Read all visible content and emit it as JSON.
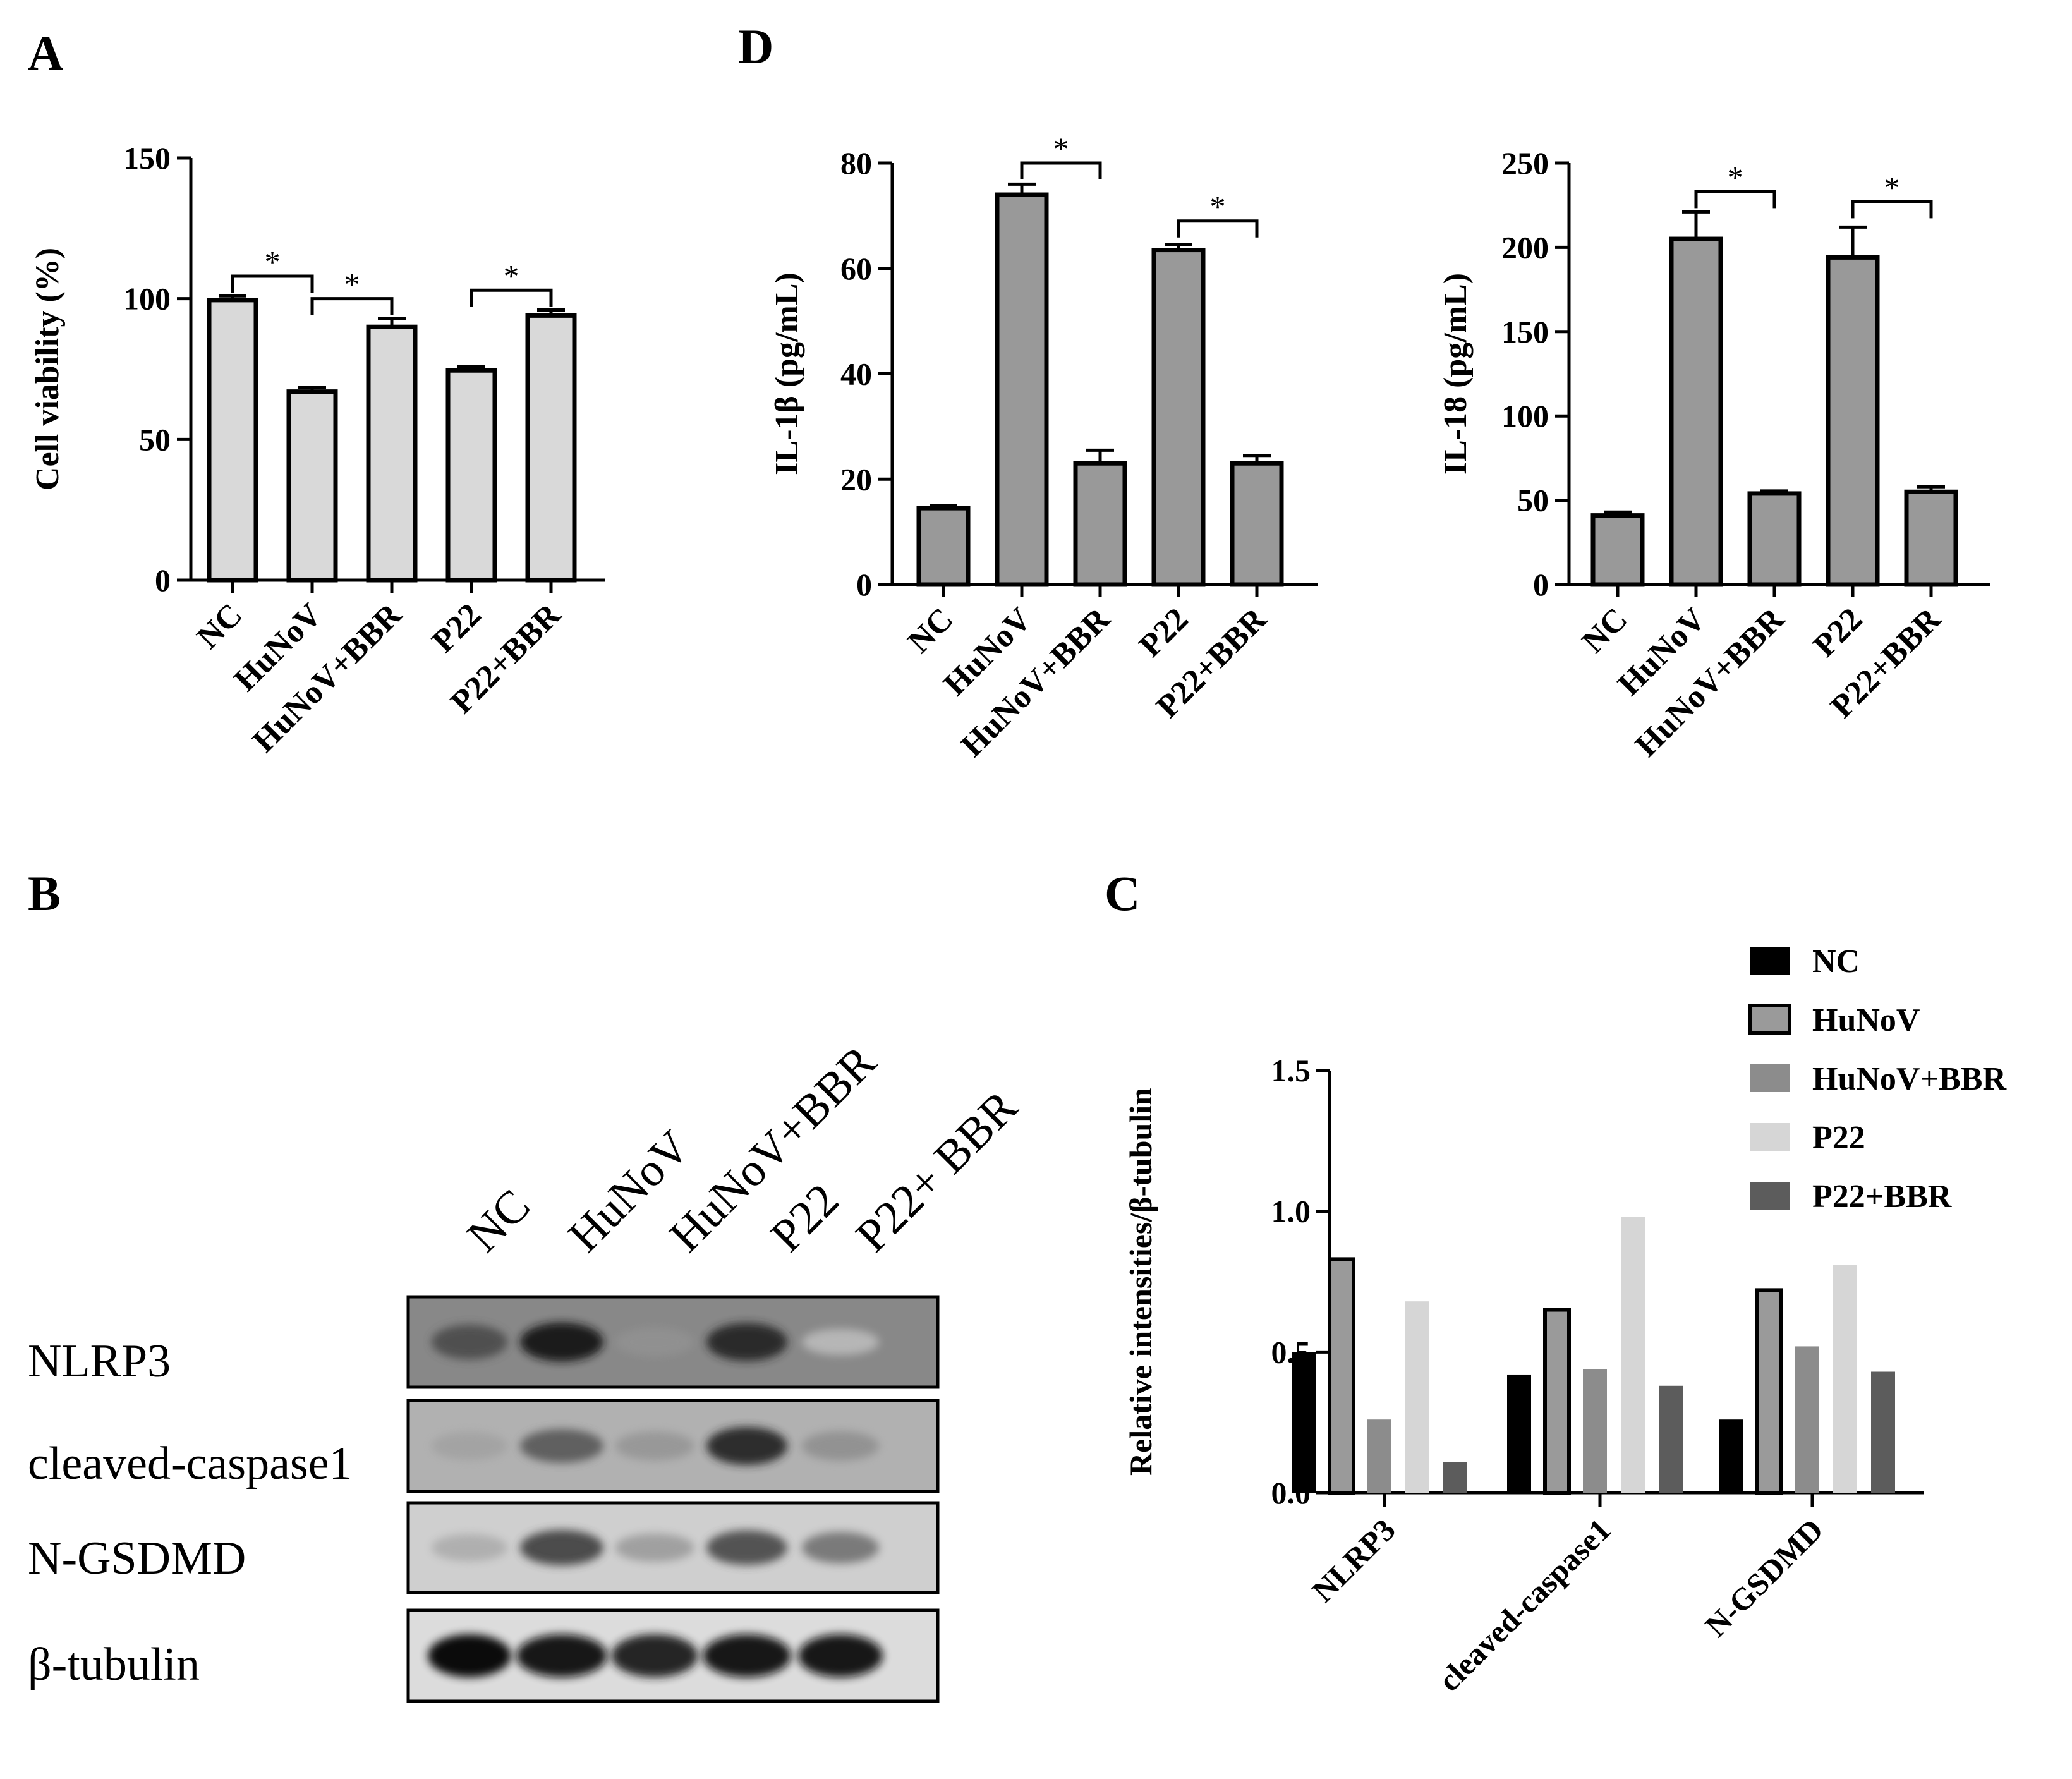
{
  "panel_labels": {
    "A": "A",
    "B": "B",
    "C": "C",
    "D": "D"
  },
  "significance_symbol": "*",
  "chart_data": [
    {
      "id": "A",
      "type": "bar",
      "title": "",
      "xlabel": "",
      "ylabel": "Cell viability (%)",
      "categories": [
        "NC",
        "HuNoV",
        "HuNoV+BBR",
        "P22",
        "P22+BBR"
      ],
      "values": [
        99.5,
        67,
        90,
        74.5,
        94
      ],
      "errors": [
        1.5,
        1.5,
        3,
        1.5,
        2
      ],
      "ylim": [
        0,
        150
      ],
      "yticks": [
        0,
        50,
        100,
        150
      ],
      "bar_color": "#d9d9d9",
      "grid": false,
      "significance": [
        {
          "from": 0,
          "to": 1,
          "y": 108,
          "label": "*"
        },
        {
          "from": 1,
          "to": 2,
          "y": 100,
          "label": "*"
        },
        {
          "from": 3,
          "to": 4,
          "y": 103,
          "label": "*"
        }
      ]
    },
    {
      "id": "D1",
      "type": "bar",
      "title": "",
      "xlabel": "",
      "ylabel": "IL-1β (pg/mL)",
      "categories": [
        "NC",
        "HuNoV",
        "HuNoV+BBR",
        "P22",
        "P22+BBR"
      ],
      "values": [
        14.5,
        74,
        23,
        63.5,
        23
      ],
      "errors": [
        0.5,
        2,
        2.5,
        1,
        1.5
      ],
      "ylim": [
        0,
        80
      ],
      "yticks": [
        0,
        20,
        40,
        60,
        80
      ],
      "bar_color": "#999999",
      "grid": false,
      "significance": [
        {
          "from": 1,
          "to": 2,
          "y": 80,
          "label": "*"
        },
        {
          "from": 3,
          "to": 4,
          "y": 69,
          "label": "*"
        }
      ]
    },
    {
      "id": "D2",
      "type": "bar",
      "title": "",
      "xlabel": "",
      "ylabel": "IL-18 (pg/mL)",
      "categories": [
        "NC",
        "HuNoV",
        "HuNoV+BBR",
        "P22",
        "P22+BBR"
      ],
      "values": [
        41,
        205,
        54,
        194,
        55
      ],
      "errors": [
        2,
        16,
        1.5,
        18,
        3
      ],
      "ylim": [
        0,
        250
      ],
      "yticks": [
        0,
        50,
        100,
        150,
        200,
        250
      ],
      "bar_color": "#999999",
      "grid": false,
      "significance": [
        {
          "from": 1,
          "to": 2,
          "y": 233,
          "label": "*"
        },
        {
          "from": 3,
          "to": 4,
          "y": 227,
          "label": "*"
        }
      ]
    },
    {
      "id": "C",
      "type": "bar",
      "title": "",
      "xlabel": "",
      "ylabel": "Relative intensities/β-tubulin",
      "categories": [
        "NLRP3",
        "cleaved-caspase1",
        "N-GSDMD"
      ],
      "ylim": [
        0,
        1.5
      ],
      "yticks": [
        0.0,
        0.5,
        1.0,
        1.5
      ],
      "yticklabels": [
        "0.0",
        "0.5",
        "1.0",
        "1.5"
      ],
      "grid": false,
      "legend_position": "top-right",
      "series": [
        {
          "name": "NC",
          "values": [
            0.5,
            0.42,
            0.26
          ],
          "color": "#000000",
          "outlined": false
        },
        {
          "name": "HuNoV",
          "values": [
            0.83,
            0.65,
            0.72
          ],
          "color": "#9a9a9a",
          "outlined": true
        },
        {
          "name": "HuNoV+BBR",
          "values": [
            0.26,
            0.44,
            0.52
          ],
          "color": "#8c8c8c",
          "outlined": false
        },
        {
          "name": "P22",
          "values": [
            0.68,
            0.98,
            0.81
          ],
          "color": "#d6d6d6",
          "outlined": false
        },
        {
          "name": "P22+BBR",
          "values": [
            0.11,
            0.38,
            0.43
          ],
          "color": "#5c5c5c",
          "outlined": false
        }
      ]
    }
  ],
  "blot": {
    "lanes": [
      "NC",
      "HuNoV",
      "HuNoV+BBR",
      "P22",
      "P22+ BBR"
    ],
    "rows": [
      {
        "label": "NLRP3",
        "background": "#888888",
        "intensities": [
          0.68,
          0.92,
          0.38,
          0.86,
          0.2
        ]
      },
      {
        "label": "cleaved-caspase1",
        "background": "#b1b1b1",
        "intensities": [
          0.3,
          0.62,
          0.35,
          0.86,
          0.38
        ]
      },
      {
        "label": "N-GSDMD",
        "background": "#cfcfcf",
        "intensities": [
          0.25,
          0.72,
          0.32,
          0.68,
          0.5
        ]
      },
      {
        "label": "β-tubulin",
        "background": "#dcdcdc",
        "intensities": [
          1.0,
          0.98,
          0.9,
          0.97,
          0.95
        ]
      }
    ]
  }
}
